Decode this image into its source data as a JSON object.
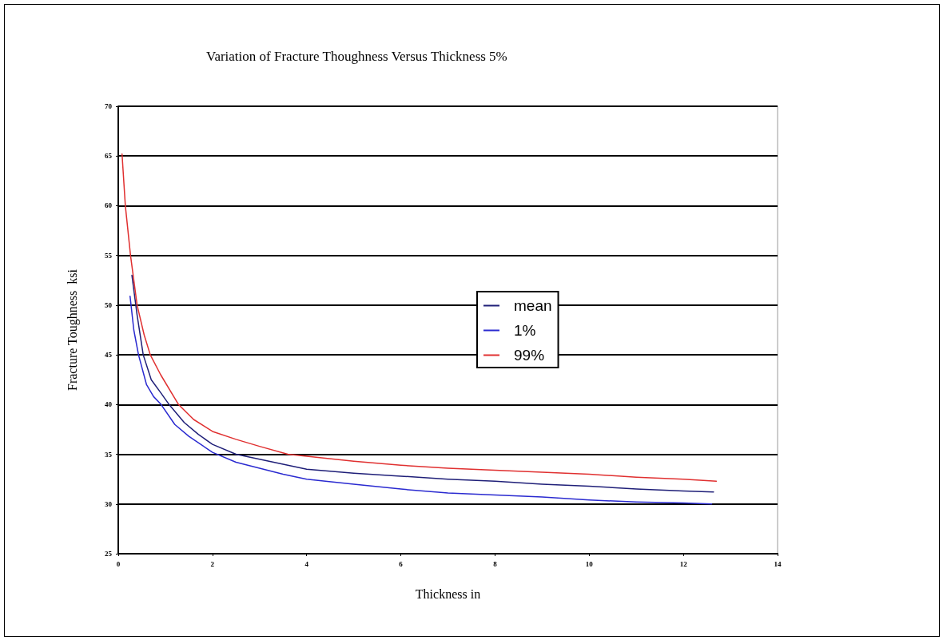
{
  "chart_data": {
    "type": "line",
    "title": "Variation of Fracture Thoughness Versus Thickness 5%",
    "xlabel": "Thickness in",
    "ylabel": "Fracture Toughness  ksi",
    "xlim": [
      0,
      14
    ],
    "xticks": [
      0,
      2,
      4,
      6,
      8,
      10,
      12,
      14
    ],
    "ylim": [
      25,
      70
    ],
    "yticks": [
      25,
      30,
      35,
      40,
      45,
      50,
      55,
      60,
      65,
      70
    ],
    "grid": "y",
    "legend": "right",
    "marker": "none",
    "line_style": "solid",
    "series": [
      {
        "name": "mean",
        "color": "#1f1f78",
        "x": [
          0.29,
          0.4,
          0.53,
          0.7,
          0.9,
          1.08,
          1.4,
          1.7,
          2,
          2.5,
          3,
          3.5,
          4,
          5,
          6,
          7,
          8,
          9,
          10,
          11,
          12,
          12.64
        ],
        "values": [
          53,
          49,
          45,
          42.5,
          41.2,
          40,
          38.2,
          37,
          36,
          35,
          34.5,
          34,
          33.5,
          33.1,
          32.8,
          32.5,
          32.3,
          32,
          31.8,
          31.5,
          31.3,
          31.2
        ]
      },
      {
        "name": "1%",
        "color": "#2a2ad0",
        "x": [
          0.25,
          0.33,
          0.43,
          0.6,
          0.75,
          0.91,
          1.2,
          1.5,
          2,
          2.5,
          3,
          3.5,
          4,
          5,
          6,
          7,
          8,
          9,
          10,
          11,
          12,
          12.6
        ],
        "values": [
          50.9,
          47.5,
          45,
          42,
          40.8,
          40,
          38,
          36.8,
          35.2,
          34.2,
          33.6,
          33,
          32.5,
          32,
          31.5,
          31.1,
          30.9,
          30.7,
          30.4,
          30.2,
          30.1,
          30
        ]
      },
      {
        "name": "99%",
        "color": "#e03030",
        "x": [
          0.08,
          0.15,
          0.26,
          0.4,
          0.55,
          0.68,
          0.9,
          1.28,
          1.6,
          2,
          2.5,
          3,
          3.6,
          4,
          5,
          6,
          7,
          8,
          9,
          10,
          11,
          12,
          12.7
        ],
        "values": [
          65.2,
          60,
          55,
          50,
          47,
          45,
          43,
          40,
          38.5,
          37.3,
          36.5,
          35.8,
          35,
          34.8,
          34.3,
          33.9,
          33.6,
          33.4,
          33.2,
          33,
          32.7,
          32.5,
          32.3
        ]
      }
    ]
  }
}
